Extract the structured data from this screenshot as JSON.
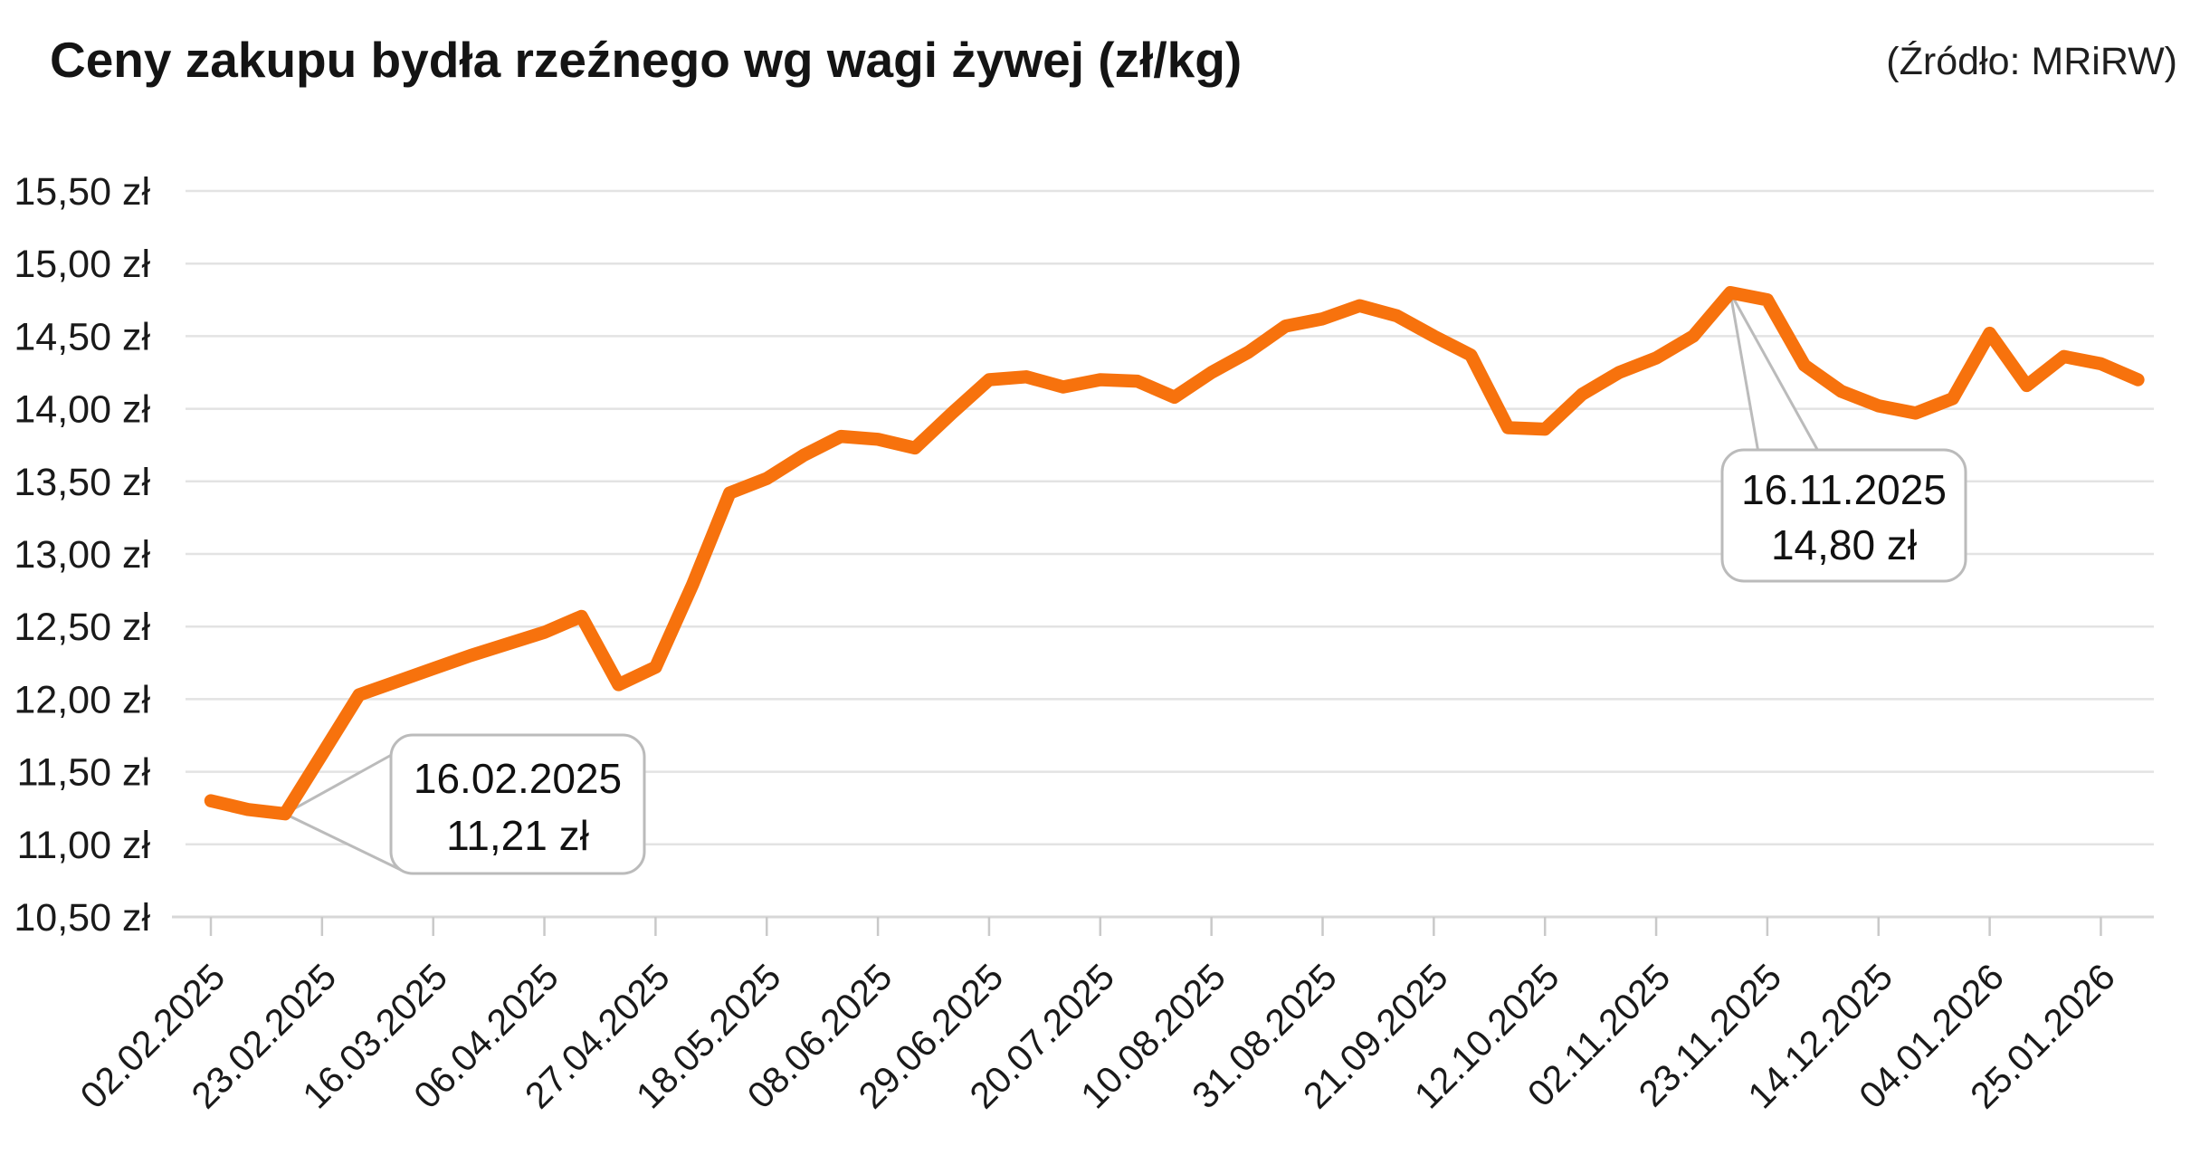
{
  "header": {
    "title": "Ceny zakupu bydła rzeźnego wg wagi żywej (zł/kg)",
    "source": "(Źródło: MRiRW)"
  },
  "chart_data": {
    "type": "line",
    "title": "Ceny zakupu bydła rzeźnego wg wagi żywej (zł/kg)",
    "source": "(Źródło: MRiRW)",
    "unit": "zł/kg",
    "value_suffix": " zł",
    "x_start": "02.02.2025",
    "x_step": "7 days",
    "x_tick_labels": [
      "02.02.2025",
      "23.02.2025",
      "16.03.2025",
      "06.04.2025",
      "27.04.2025",
      "18.05.2025",
      "08.06.2025",
      "29.06.2025",
      "20.07.2025",
      "10.08.2025",
      "31.08.2025",
      "21.09.2025",
      "12.10.2025",
      "02.11.2025",
      "23.11.2025",
      "14.12.2025",
      "04.01.2026",
      "25.01.2026"
    ],
    "ylim": [
      10.5,
      15.5
    ],
    "y_tick_step": 0.5,
    "grid": true,
    "legend": "none",
    "line_color": "#F7720D",
    "grid_color": "#E3E3E3",
    "axis_color": "#D7D7D7",
    "tick_color": "#C9C9C9",
    "text_color": "#1A1A1A",
    "callout_border_color": "#BBBBBB",
    "values": [
      11.3,
      11.24,
      11.21,
      11.62,
      12.03,
      12.12,
      12.21,
      12.3,
      12.38,
      12.46,
      12.57,
      12.1,
      12.22,
      12.79,
      13.42,
      13.52,
      13.68,
      13.81,
      13.79,
      13.73,
      13.97,
      14.2,
      14.22,
      14.15,
      14.2,
      14.19,
      14.08,
      14.25,
      14.39,
      14.57,
      14.62,
      14.71,
      14.64,
      14.5,
      14.37,
      13.87,
      13.86,
      14.1,
      14.25,
      14.35,
      14.5,
      14.8,
      14.75,
      14.3,
      14.12,
      14.02,
      13.97,
      14.07,
      14.52,
      14.16,
      14.36,
      14.31,
      14.2
    ],
    "annotations": [
      {
        "line1": "16.02.2025",
        "line2": "11,21 zł",
        "index": 2,
        "value": 11.21
      },
      {
        "line1": "16.11.2025",
        "line2": "14,80 zł",
        "index": 41,
        "value": 14.8
      }
    ]
  }
}
